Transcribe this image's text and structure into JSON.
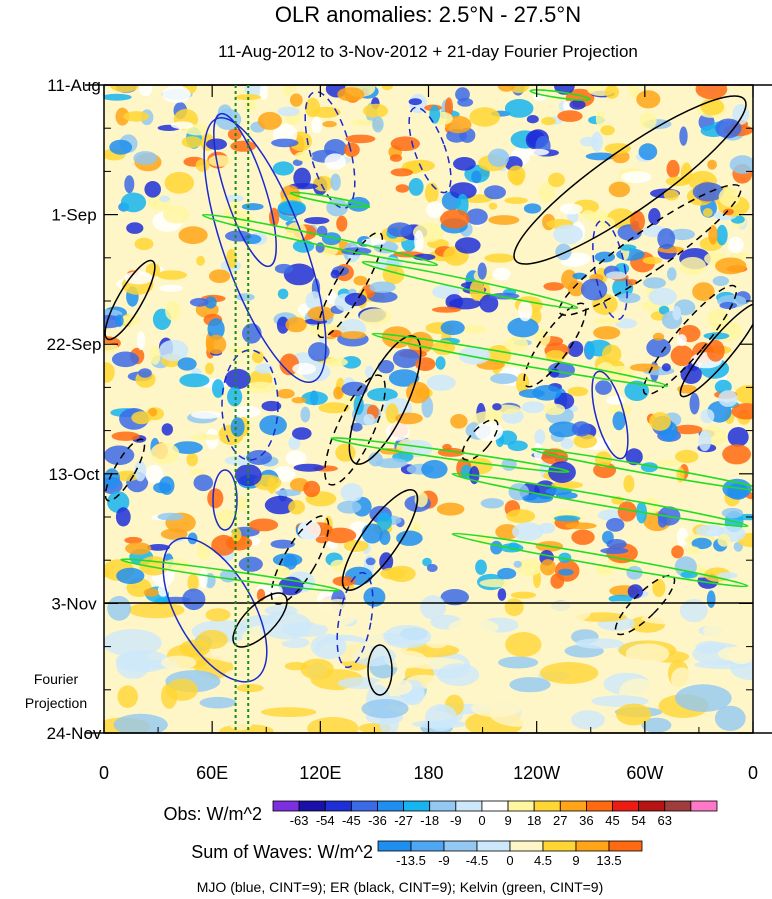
{
  "chart_data": {
    "type": "heatmap",
    "title": "OLR anomalies: 2.5°N - 27.5°N",
    "subtitle": "11-Aug-2012 to 3-Nov-2012 + 21-day Fourier Projection",
    "x_axis": {
      "range_deg_east": [
        0,
        360
      ],
      "ticks": [
        {
          "lon": 0,
          "label": "0"
        },
        {
          "lon": 60,
          "label": "60E"
        },
        {
          "lon": 120,
          "label": "120E"
        },
        {
          "lon": 180,
          "label": "180"
        },
        {
          "lon": 240,
          "label": "120W"
        },
        {
          "lon": 300,
          "label": "60W"
        },
        {
          "lon": 360,
          "label": "0"
        }
      ]
    },
    "y_axis": {
      "range": [
        "2012-08-11",
        "2012-11-24"
      ],
      "ticks": [
        {
          "date": "2012-08-11",
          "label": "11-Aug"
        },
        {
          "date": "2012-09-01",
          "label": "1-Sep"
        },
        {
          "date": "2012-09-22",
          "label": "22-Sep"
        },
        {
          "date": "2012-10-13",
          "label": "13-Oct"
        },
        {
          "date": "2012-11-03",
          "label": "3-Nov"
        },
        {
          "date": "2012-11-24",
          "label": "24-Nov"
        }
      ],
      "projection_start": "2012-11-03",
      "projection_label": "Fourier Projection"
    },
    "vertical_markers_lon": [
      73,
      80
    ],
    "obs_colorbar": {
      "label": "Obs: W/m^2",
      "levels": [
        -63,
        -54,
        -45,
        -36,
        -27,
        -18,
        -9,
        0,
        9,
        18,
        27,
        36,
        45,
        54,
        63
      ],
      "colors": [
        "#7d2ee0",
        "#1a12a8",
        "#1f2fd8",
        "#3c6ae6",
        "#1e8ff0",
        "#16b4f0",
        "#92c8f2",
        "#cde8fb",
        "#ffffff",
        "#fff6a0",
        "#ffd633",
        "#ffa517",
        "#ff6a10",
        "#ee1b14",
        "#b71414",
        "#a03c3c",
        "#ff78c8"
      ]
    },
    "waves_colorbar": {
      "label": "Sum of Waves: W/m^2",
      "levels": [
        -13.5,
        -9,
        -4.5,
        0,
        4.5,
        9,
        13.5
      ],
      "colors": [
        "#1e8ff0",
        "#4fa6f2",
        "#92c8f2",
        "#cde8fb",
        "#fff6c8",
        "#ffd633",
        "#ffa517",
        "#ff6a10"
      ]
    },
    "contour_legend": "MJO (blue, CINT=9); ER (black, CINT=9); Kelvin (green, CINT=9)",
    "series": [
      {
        "name": "MJO",
        "color": "#1a2acc"
      },
      {
        "name": "ER",
        "color": "#000000"
      },
      {
        "name": "Kelvin",
        "color": "#22dd22"
      }
    ]
  }
}
